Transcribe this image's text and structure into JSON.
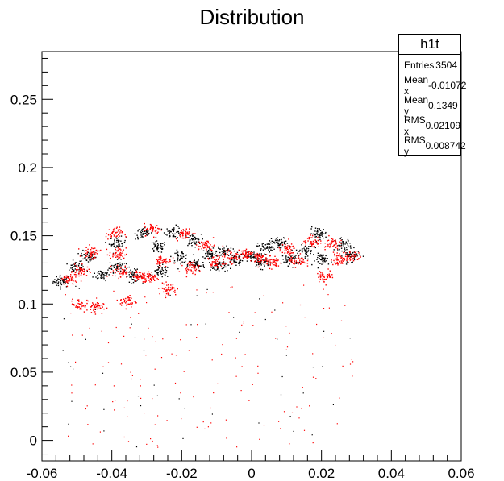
{
  "chart_data": {
    "type": "scatter",
    "title": "Distribution",
    "xlim": [
      -0.06,
      0.06
    ],
    "ylim": [
      -0.015,
      0.285
    ],
    "x_ticks": [
      "-0.06",
      "-0.04",
      "-0.02",
      "0",
      "0.02",
      "0.04",
      "0.06"
    ],
    "y_ticks": [
      "0",
      "0.05",
      "0.1",
      "0.15",
      "0.2",
      "0.25"
    ],
    "xlabel": "",
    "ylabel": "",
    "grid": false,
    "stats_box": {
      "name": "h1t",
      "rows": [
        {
          "label": "Entries",
          "value": "3504"
        },
        {
          "label": "Mean x",
          "value": "-0.01072"
        },
        {
          "label": "Mean y",
          "value": "0.1349"
        },
        {
          "label": "RMS x",
          "value": "0.02109"
        },
        {
          "label": "RMS y",
          "value": "0.008742"
        }
      ]
    },
    "series": [
      {
        "color": "#000000",
        "clusters": [
          [
            -0.0545,
            0.117
          ],
          [
            -0.0505,
            0.127
          ],
          [
            -0.047,
            0.135
          ],
          [
            -0.043,
            0.122
          ],
          [
            -0.0385,
            0.128
          ],
          [
            -0.0385,
            0.145
          ],
          [
            -0.034,
            0.121
          ],
          [
            -0.031,
            0.152
          ],
          [
            -0.027,
            0.142
          ],
          [
            -0.026,
            0.124
          ],
          [
            -0.0225,
            0.153
          ],
          [
            -0.0205,
            0.135
          ],
          [
            -0.017,
            0.147
          ],
          [
            -0.016,
            0.129
          ],
          [
            -0.012,
            0.137
          ],
          [
            -0.008,
            0.139
          ],
          [
            -0.005,
            0.133
          ],
          [
            0.0,
            0.135
          ],
          [
            0.004,
            0.142
          ],
          [
            0.008,
            0.145
          ],
          [
            0.011,
            0.133
          ],
          [
            0.015,
            0.139
          ],
          [
            0.019,
            0.152
          ],
          [
            0.0205,
            0.133
          ],
          [
            0.026,
            0.144
          ],
          [
            0.0285,
            0.136
          ],
          [
            -0.0095,
            0.128
          ],
          [
            0.0025,
            0.131
          ]
        ],
        "sparse_fraction": 0.04
      },
      {
        "color": "#ff0000",
        "clusters": [
          [
            -0.0525,
            0.118
          ],
          [
            -0.049,
            0.124
          ],
          [
            -0.046,
            0.138
          ],
          [
            -0.0495,
            0.1
          ],
          [
            -0.045,
            0.098
          ],
          [
            -0.0395,
            0.152
          ],
          [
            -0.0385,
            0.137
          ],
          [
            -0.0375,
            0.124
          ],
          [
            -0.0355,
            0.102
          ],
          [
            -0.032,
            0.121
          ],
          [
            -0.0285,
            0.155
          ],
          [
            -0.029,
            0.12
          ],
          [
            -0.0255,
            0.132
          ],
          [
            -0.024,
            0.111
          ],
          [
            -0.0195,
            0.152
          ],
          [
            -0.0175,
            0.127
          ],
          [
            -0.013,
            0.143
          ],
          [
            -0.0105,
            0.131
          ],
          [
            -0.006,
            0.135
          ],
          [
            -0.002,
            0.137
          ],
          [
            0.002,
            0.134
          ],
          [
            0.006,
            0.131
          ],
          [
            0.01,
            0.14
          ],
          [
            0.013,
            0.132
          ],
          [
            0.017,
            0.146
          ],
          [
            0.021,
            0.121
          ],
          [
            0.025,
            0.133
          ],
          [
            0.0285,
            0.135
          ],
          [
            0.0225,
            0.145
          ]
        ],
        "sparse_fraction": 0.12
      }
    ]
  }
}
